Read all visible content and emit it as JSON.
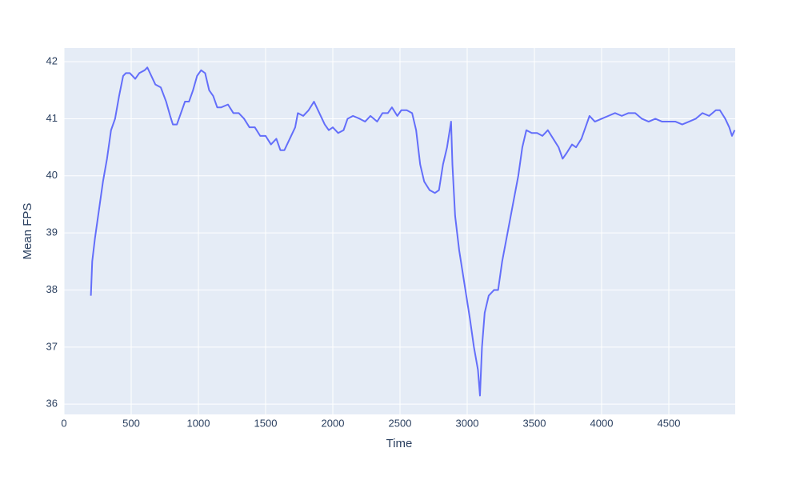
{
  "chart_data": {
    "type": "line",
    "x_label": "Time",
    "y_label": "Mean FPS",
    "x": [
      200,
      210,
      230,
      260,
      290,
      320,
      350,
      380,
      410,
      440,
      460,
      490,
      510,
      530,
      560,
      600,
      620,
      650,
      680,
      720,
      760,
      790,
      810,
      840,
      870,
      900,
      930,
      960,
      990,
      1020,
      1050,
      1080,
      1110,
      1140,
      1170,
      1220,
      1260,
      1300,
      1340,
      1380,
      1420,
      1460,
      1500,
      1540,
      1580,
      1610,
      1640,
      1680,
      1720,
      1740,
      1780,
      1820,
      1860,
      1900,
      1940,
      1970,
      2000,
      2040,
      2080,
      2110,
      2150,
      2200,
      2240,
      2280,
      2330,
      2370,
      2410,
      2440,
      2480,
      2510,
      2550,
      2590,
      2620,
      2650,
      2680,
      2720,
      2760,
      2790,
      2820,
      2850,
      2880,
      2890,
      2910,
      2940,
      2980,
      3020,
      3050,
      3080,
      3095,
      3110,
      3130,
      3160,
      3200,
      3230,
      3260,
      3300,
      3340,
      3380,
      3410,
      3440,
      3480,
      3520,
      3560,
      3600,
      3640,
      3680,
      3710,
      3740,
      3780,
      3810,
      3850,
      3880,
      3910,
      3950,
      4000,
      4050,
      4100,
      4150,
      4200,
      4250,
      4300,
      4350,
      4400,
      4450,
      4500,
      4550,
      4600,
      4650,
      4700,
      4750,
      4800,
      4850,
      4880,
      4920,
      4950,
      4970,
      4990
    ],
    "series": [
      {
        "name": "Mean FPS",
        "color": "#636efa",
        "values": [
          37.9,
          38.5,
          38.9,
          39.4,
          39.9,
          40.3,
          40.8,
          41.0,
          41.4,
          41.75,
          41.8,
          41.8,
          41.75,
          41.7,
          41.8,
          41.85,
          41.9,
          41.75,
          41.6,
          41.55,
          41.3,
          41.05,
          40.9,
          40.9,
          41.1,
          41.3,
          41.3,
          41.5,
          41.75,
          41.85,
          41.8,
          41.5,
          41.4,
          41.2,
          41.2,
          41.25,
          41.1,
          41.1,
          41.0,
          40.85,
          40.85,
          40.7,
          40.7,
          40.55,
          40.65,
          40.45,
          40.45,
          40.65,
          40.85,
          41.1,
          41.05,
          41.15,
          41.3,
          41.1,
          40.9,
          40.8,
          40.85,
          40.75,
          40.8,
          41.0,
          41.05,
          41.0,
          40.95,
          41.05,
          40.95,
          41.1,
          41.1,
          41.2,
          41.05,
          41.15,
          41.15,
          41.1,
          40.8,
          40.2,
          39.9,
          39.75,
          39.7,
          39.75,
          40.2,
          40.5,
          40.95,
          40.2,
          39.3,
          38.7,
          38.1,
          37.5,
          37.0,
          36.6,
          36.15,
          37.0,
          37.6,
          37.9,
          38.0,
          38.0,
          38.5,
          39.0,
          39.5,
          40.0,
          40.5,
          40.8,
          40.75,
          40.75,
          40.7,
          40.8,
          40.65,
          40.5,
          40.3,
          40.4,
          40.55,
          40.5,
          40.65,
          40.85,
          41.05,
          40.95,
          41.0,
          41.05,
          41.1,
          41.05,
          41.1,
          41.1,
          41.0,
          40.95,
          41.0,
          40.95,
          40.95,
          40.95,
          40.9,
          40.95,
          41.0,
          41.1,
          41.05,
          41.15,
          41.15,
          41.0,
          40.85,
          40.7,
          40.8
        ]
      }
    ],
    "xlim": [
      0,
      4994
    ],
    "ylim": [
      35.82,
      42.24
    ],
    "xticks": [
      0,
      500,
      1000,
      1500,
      2000,
      2500,
      3000,
      3500,
      4000,
      4500
    ],
    "yticks": [
      36,
      37,
      38,
      39,
      40,
      41,
      42
    ],
    "grid": true
  }
}
